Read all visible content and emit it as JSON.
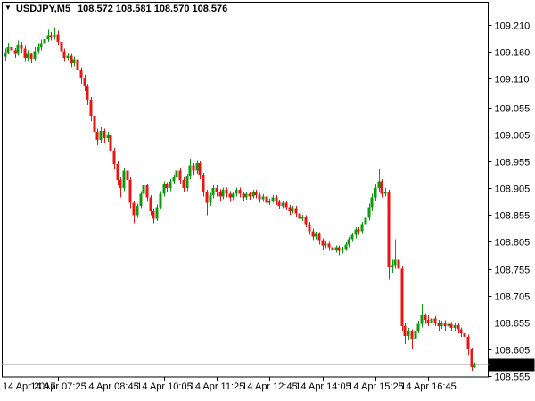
{
  "window": {
    "background": "#ffffff"
  },
  "title_bar": {
    "dropdown_icon": "▼",
    "symbol_period": "USDJPY,M5",
    "ohlc_text": "108.572 108.581 108.570 108.576"
  },
  "colors": {
    "bull": "#0b9b0b",
    "bear": "#ea1414",
    "border": "#000000",
    "background": "#ffffff",
    "current_price_line": "#c8c8c8",
    "badge_bg": "#000000",
    "badge_text": "#ffffff",
    "axis_text": "#000000"
  },
  "current_price_badge": {
    "value": "108.576"
  },
  "chart_data": {
    "type": "candlestick",
    "symbol": "USDJPY",
    "timeframe": "M5",
    "date": "14 Apr 2017",
    "start_time": "06:05",
    "interval_minutes": 5,
    "grid": false,
    "legend_position": "none",
    "last_candle_ohlc": {
      "open": 108.572,
      "high": 108.581,
      "low": 108.57,
      "close": 108.576
    },
    "current_price": 108.576,
    "y_axis": {
      "side": "right",
      "price_at_top": 109.2515,
      "price_at_bottom": 108.5535,
      "labels": [
        "109.210",
        "109.160",
        "109.110",
        "109.055",
        "109.005",
        "108.955",
        "108.905",
        "108.855",
        "108.805",
        "108.755",
        "108.705",
        "108.655",
        "108.605",
        "108.555"
      ]
    },
    "x_axis": {
      "labels": [
        {
          "label": "14 Apr 2017",
          "candle_index": 0,
          "tick": false,
          "align": "left"
        },
        {
          "label": "14 Apr 07:25",
          "candle_index": 16,
          "tick": true,
          "align": "center"
        },
        {
          "label": "14 Apr 08:45",
          "candle_index": 32,
          "tick": true,
          "align": "center"
        },
        {
          "label": "14 Apr 10:05",
          "candle_index": 48,
          "tick": true,
          "align": "center"
        },
        {
          "label": "14 Apr 11:25",
          "candle_index": 64,
          "tick": true,
          "align": "center"
        },
        {
          "label": "14 Apr 12:45",
          "candle_index": 80,
          "tick": true,
          "align": "center"
        },
        {
          "label": "14 Apr 14:05",
          "candle_index": 96,
          "tick": true,
          "align": "center"
        },
        {
          "label": "14 Apr 15:25",
          "candle_index": 112,
          "tick": true,
          "align": "center"
        },
        {
          "label": "14 Apr 16:45",
          "candle_index": 128,
          "tick": true,
          "align": "center"
        }
      ]
    },
    "candles_format": [
      "open",
      "high",
      "low",
      "close"
    ],
    "candles": [
      [
        109.15,
        109.165,
        109.142,
        109.158
      ],
      [
        109.158,
        109.176,
        109.154,
        109.168
      ],
      [
        109.168,
        109.172,
        109.155,
        109.162
      ],
      [
        109.162,
        109.166,
        109.148,
        109.155
      ],
      [
        109.155,
        109.18,
        109.152,
        109.172
      ],
      [
        109.172,
        109.178,
        109.158,
        109.165
      ],
      [
        109.165,
        109.17,
        109.14,
        109.148
      ],
      [
        109.148,
        109.162,
        109.143,
        109.155
      ],
      [
        109.155,
        109.158,
        109.138,
        109.146
      ],
      [
        109.146,
        109.168,
        109.142,
        109.16
      ],
      [
        109.16,
        109.175,
        109.155,
        109.168
      ],
      [
        109.168,
        109.182,
        109.162,
        109.175
      ],
      [
        109.175,
        109.19,
        109.17,
        109.183
      ],
      [
        109.183,
        109.2,
        109.178,
        109.19
      ],
      [
        109.19,
        109.196,
        109.18,
        109.186
      ],
      [
        109.186,
        109.205,
        109.182,
        109.192
      ],
      [
        109.192,
        109.198,
        109.172,
        109.178
      ],
      [
        109.178,
        109.183,
        109.152,
        109.16
      ],
      [
        109.16,
        109.165,
        109.14,
        109.148
      ],
      [
        109.148,
        109.158,
        109.144,
        109.152
      ],
      [
        109.152,
        109.155,
        109.13,
        109.138
      ],
      [
        109.138,
        109.15,
        109.132,
        109.145
      ],
      [
        109.145,
        109.148,
        109.118,
        109.125
      ],
      [
        109.125,
        109.13,
        109.1,
        109.11
      ],
      [
        109.11,
        109.116,
        109.086,
        109.095
      ],
      [
        109.095,
        109.1,
        109.06,
        109.07
      ],
      [
        109.07,
        109.075,
        109.03,
        109.04
      ],
      [
        109.04,
        109.045,
        109.0,
        109.01
      ],
      [
        109.01,
        109.016,
        108.985,
        108.995
      ],
      [
        108.995,
        109.018,
        108.99,
        109.012
      ],
      [
        109.012,
        109.016,
        108.99,
        108.998
      ],
      [
        108.998,
        109.01,
        108.992,
        109.005
      ],
      [
        109.005,
        109.008,
        108.965,
        108.975
      ],
      [
        108.975,
        108.98,
        108.94,
        108.95
      ],
      [
        108.95,
        108.955,
        108.91,
        108.92
      ],
      [
        108.92,
        108.925,
        108.888,
        108.905
      ],
      [
        108.905,
        108.942,
        108.9,
        108.938
      ],
      [
        108.938,
        108.944,
        108.912,
        108.92
      ],
      [
        108.92,
        108.925,
        108.868,
        108.878
      ],
      [
        108.878,
        108.882,
        108.84,
        108.855
      ],
      [
        108.855,
        108.876,
        108.85,
        108.872
      ],
      [
        108.872,
        108.9,
        108.868,
        108.895
      ],
      [
        108.895,
        108.915,
        108.89,
        108.91
      ],
      [
        108.91,
        108.914,
        108.88,
        108.888
      ],
      [
        108.888,
        108.892,
        108.855,
        108.862
      ],
      [
        108.862,
        108.868,
        108.84,
        108.848
      ],
      [
        108.848,
        108.875,
        108.844,
        108.87
      ],
      [
        108.87,
        108.9,
        108.866,
        108.895
      ],
      [
        108.895,
        108.918,
        108.89,
        108.912
      ],
      [
        108.912,
        108.916,
        108.898,
        108.905
      ],
      [
        108.905,
        108.922,
        108.9,
        108.918
      ],
      [
        108.918,
        108.93,
        108.912,
        108.925
      ],
      [
        108.925,
        108.975,
        108.92,
        108.938
      ],
      [
        108.938,
        108.942,
        108.912,
        108.92
      ],
      [
        108.92,
        108.925,
        108.898,
        108.905
      ],
      [
        108.905,
        108.932,
        108.9,
        108.928
      ],
      [
        108.928,
        108.96,
        108.922,
        108.948
      ],
      [
        108.948,
        108.952,
        108.93,
        108.938
      ],
      [
        108.938,
        108.956,
        108.932,
        108.952
      ],
      [
        108.952,
        108.955,
        108.922,
        108.93
      ],
      [
        108.93,
        108.934,
        108.89,
        108.898
      ],
      [
        108.898,
        108.902,
        108.855,
        108.878
      ],
      [
        108.878,
        108.896,
        108.872,
        108.892
      ],
      [
        108.892,
        108.91,
        108.886,
        108.905
      ],
      [
        108.905,
        108.91,
        108.89,
        108.898
      ],
      [
        108.898,
        108.903,
        108.882,
        108.89
      ],
      [
        108.89,
        108.906,
        108.885,
        108.902
      ],
      [
        108.902,
        108.906,
        108.888,
        108.895
      ],
      [
        108.895,
        108.9,
        108.88,
        108.888
      ],
      [
        108.888,
        108.898,
        108.883,
        108.895
      ],
      [
        108.895,
        108.906,
        108.89,
        108.902
      ],
      [
        108.902,
        108.906,
        108.888,
        108.895
      ],
      [
        108.895,
        108.899,
        108.882,
        108.888
      ],
      [
        108.888,
        108.898,
        108.884,
        108.895
      ],
      [
        108.895,
        108.899,
        108.884,
        108.89
      ],
      [
        108.89,
        108.902,
        108.886,
        108.898
      ],
      [
        108.898,
        108.902,
        108.886,
        108.892
      ],
      [
        108.892,
        108.896,
        108.878,
        108.885
      ],
      [
        108.885,
        108.894,
        108.88,
        108.89
      ],
      [
        108.89,
        108.894,
        108.872,
        108.878
      ],
      [
        108.878,
        108.886,
        108.874,
        108.882
      ],
      [
        108.882,
        108.892,
        108.878,
        108.888
      ],
      [
        108.888,
        108.892,
        108.874,
        108.88
      ],
      [
        108.88,
        108.884,
        108.866,
        108.872
      ],
      [
        108.872,
        108.882,
        108.868,
        108.878
      ],
      [
        108.878,
        108.882,
        108.864,
        108.87
      ],
      [
        108.87,
        108.874,
        108.856,
        108.862
      ],
      [
        108.862,
        108.872,
        108.858,
        108.868
      ],
      [
        108.868,
        108.872,
        108.852,
        108.858
      ],
      [
        108.858,
        108.862,
        108.842,
        108.848
      ],
      [
        108.848,
        108.856,
        108.844,
        108.852
      ],
      [
        108.852,
        108.855,
        108.832,
        108.838
      ],
      [
        108.838,
        108.842,
        108.818,
        108.825
      ],
      [
        108.825,
        108.83,
        108.808,
        108.815
      ],
      [
        108.815,
        108.824,
        108.81,
        108.82
      ],
      [
        108.82,
        108.823,
        108.8,
        108.808
      ],
      [
        108.808,
        108.812,
        108.79,
        108.798
      ],
      [
        108.798,
        108.806,
        108.793,
        108.802
      ],
      [
        108.802,
        108.805,
        108.788,
        108.795
      ],
      [
        108.795,
        108.799,
        108.782,
        108.79
      ],
      [
        108.79,
        108.798,
        108.785,
        108.795
      ],
      [
        108.795,
        108.798,
        108.78,
        108.788
      ],
      [
        108.788,
        108.796,
        108.783,
        108.792
      ],
      [
        108.792,
        108.804,
        108.788,
        108.8
      ],
      [
        108.8,
        108.814,
        108.795,
        108.81
      ],
      [
        108.81,
        108.822,
        108.805,
        108.818
      ],
      [
        108.818,
        108.832,
        108.812,
        108.828
      ],
      [
        108.828,
        108.832,
        108.818,
        108.825
      ],
      [
        108.825,
        108.842,
        108.82,
        108.838
      ],
      [
        108.838,
        108.855,
        108.832,
        108.85
      ],
      [
        108.85,
        108.876,
        108.845,
        108.87
      ],
      [
        108.87,
        108.895,
        108.862,
        108.888
      ],
      [
        108.888,
        108.912,
        108.882,
        108.905
      ],
      [
        108.905,
        108.94,
        108.898,
        108.918
      ],
      [
        108.918,
        108.922,
        108.888,
        108.895
      ],
      [
        108.895,
        108.905,
        108.89,
        108.898
      ],
      [
        108.898,
        108.902,
        108.735,
        108.758
      ],
      [
        108.758,
        108.772,
        108.748,
        108.762
      ],
      [
        108.762,
        108.81,
        108.755,
        108.772
      ],
      [
        108.772,
        108.778,
        108.745,
        108.755
      ],
      [
        108.755,
        108.76,
        108.64,
        108.648
      ],
      [
        108.648,
        108.655,
        108.615,
        108.63
      ],
      [
        108.63,
        108.645,
        108.622,
        108.638
      ],
      [
        108.638,
        108.642,
        108.605,
        108.625
      ],
      [
        108.625,
        108.645,
        108.62,
        108.64
      ],
      [
        108.64,
        108.658,
        108.635,
        108.652
      ],
      [
        108.652,
        108.69,
        108.646,
        108.668
      ],
      [
        108.668,
        108.672,
        108.652,
        108.66
      ],
      [
        108.66,
        108.668,
        108.648,
        108.655
      ],
      [
        108.655,
        108.666,
        108.65,
        108.662
      ],
      [
        108.662,
        108.666,
        108.648,
        108.655
      ],
      [
        108.655,
        108.66,
        108.64,
        108.648
      ],
      [
        108.648,
        108.658,
        108.643,
        108.655
      ],
      [
        108.655,
        108.659,
        108.64,
        108.648
      ],
      [
        108.648,
        108.656,
        108.643,
        108.652
      ],
      [
        108.652,
        108.656,
        108.638,
        108.645
      ],
      [
        108.645,
        108.653,
        108.64,
        108.65
      ],
      [
        108.65,
        108.654,
        108.635,
        108.642
      ],
      [
        108.642,
        108.646,
        108.628,
        108.635
      ],
      [
        108.635,
        108.64,
        108.62,
        108.628
      ],
      [
        108.628,
        108.632,
        108.595,
        108.605
      ],
      [
        108.605,
        108.608,
        108.565,
        108.572
      ],
      [
        108.572,
        108.581,
        108.57,
        108.576
      ]
    ]
  }
}
